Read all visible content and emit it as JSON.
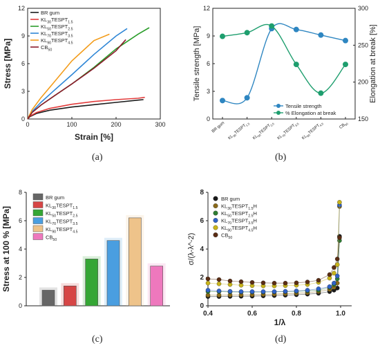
{
  "panel_labels": [
    "(a)",
    "(b)",
    "(c)",
    "(d)"
  ],
  "chart_data": [
    {
      "panel": "(a)",
      "type": "line",
      "xlabel": "Strain [%]",
      "ylabel": "Stress [MPa]",
      "xlim": [
        0,
        300
      ],
      "ylim": [
        0,
        12
      ],
      "xticks": [
        "0",
        "100",
        "200",
        "300"
      ],
      "yticks": [
        "0",
        "3",
        "6",
        "9",
        "12"
      ],
      "legend_position": "top-left",
      "series": [
        {
          "name": "BR gum",
          "label_parts": [
            "BR gum"
          ],
          "color": "#1a1a1a",
          "x": [
            0,
            5,
            20,
            50,
            100,
            150,
            200,
            250,
            262
          ],
          "y": [
            0,
            0.25,
            0.6,
            0.95,
            1.3,
            1.55,
            1.8,
            2.05,
            2.1
          ]
        },
        {
          "name": "KL30TESPT1.5",
          "label_parts": [
            "KL",
            "30",
            "TESPT",
            "1.5"
          ],
          "color": "#e23b3b",
          "x": [
            0,
            5,
            20,
            50,
            100,
            150,
            200,
            250,
            265
          ],
          "y": [
            0,
            0.3,
            0.7,
            1.15,
            1.6,
            1.9,
            2.1,
            2.25,
            2.35
          ]
        },
        {
          "name": "KL50TESPT2.5",
          "label_parts": [
            "KL",
            "50",
            "TESPT",
            "2.5"
          ],
          "color": "#2a9d2a",
          "x": [
            0,
            10,
            30,
            60,
            100,
            150,
            200,
            250,
            275
          ],
          "y": [
            0,
            0.7,
            1.5,
            2.5,
            3.8,
            5.6,
            7.6,
            9.2,
            9.9
          ]
        },
        {
          "name": "KL70TESPT3.5",
          "label_parts": [
            "KL",
            "70",
            "TESPT",
            "3.5"
          ],
          "color": "#2e86d6",
          "x": [
            0,
            10,
            30,
            60,
            100,
            150,
            200,
            225
          ],
          "y": [
            0,
            0.8,
            1.8,
            3.1,
            4.8,
            7.0,
            9.0,
            9.8
          ]
        },
        {
          "name": "KL90TESPT4.5",
          "label_parts": [
            "KL",
            "90",
            "TESPT",
            "4.5"
          ],
          "color": "#f39c1a",
          "x": [
            0,
            10,
            30,
            60,
            100,
            150,
            185
          ],
          "y": [
            0,
            1.0,
            2.3,
            4.0,
            6.3,
            8.5,
            9.2
          ]
        },
        {
          "name": "CB50",
          "label_parts": [
            "CB",
            "50"
          ],
          "color": "#8b1a2b",
          "x": [
            0,
            10,
            30,
            60,
            100,
            150,
            200,
            222
          ],
          "y": [
            0,
            0.7,
            1.5,
            2.5,
            3.8,
            5.5,
            7.4,
            8.6
          ]
        }
      ]
    },
    {
      "panel": "(b)",
      "type": "line",
      "categories": [
        "BR gum",
        "KL30TESPT1.5",
        "KL50TESPT2.5",
        "KL70TESPT3.5",
        "KL90TESPT4.5",
        "CB50"
      ],
      "category_parts": [
        [
          "BR gum"
        ],
        [
          "KL",
          "30",
          "TESPT",
          "1.5"
        ],
        [
          "KL",
          "50",
          "TESPT",
          "2.5"
        ],
        [
          "KL",
          "70",
          "TESPT",
          "3.5"
        ],
        [
          "KL",
          "90",
          "TESPT",
          "4.5"
        ],
        [
          "CB",
          "50"
        ]
      ],
      "ylabel": "Tensile strength [MPa]",
      "y2label": "Elongation at break [%]",
      "ylim": [
        0,
        12
      ],
      "y2lim": [
        150,
        300
      ],
      "yticks": [
        "0",
        "3",
        "6",
        "9",
        "12"
      ],
      "y2ticks": [
        "150",
        "200",
        "250",
        "300"
      ],
      "legend_position": "bottom-right",
      "series": [
        {
          "name": "Tensile strength",
          "axis": "left",
          "color": "#2e86c1",
          "values": [
            2.0,
            2.3,
            9.8,
            9.7,
            9.1,
            8.5
          ]
        },
        {
          "name": "% Elongation at break",
          "axis": "right",
          "color": "#1e9e6e",
          "values": [
            262,
            267,
            276,
            224,
            185,
            224
          ]
        }
      ]
    },
    {
      "panel": "(c)",
      "type": "bar",
      "ylabel": "Stress at 100 % [MPa]",
      "ylim": [
        0,
        8
      ],
      "yticks": [
        "0",
        "2",
        "4",
        "6",
        "8"
      ],
      "legend_position": "top-left",
      "categories": [
        "BR gum",
        "KL30TESPT1.5",
        "KL50TESPT2.5",
        "KL70TESPT3.5",
        "KL90TESPT4.5",
        "CB50"
      ],
      "category_parts": [
        [
          "BR gum"
        ],
        [
          "KL",
          "30",
          "TESPT",
          "1.5"
        ],
        [
          "KL",
          "50",
          "TESPT",
          "2.5"
        ],
        [
          "KL",
          "70",
          "TESPT",
          "3.5"
        ],
        [
          "KL",
          "90",
          "TESPT",
          "4.5"
        ],
        [
          "CB",
          "50"
        ]
      ],
      "colors": [
        "#666666",
        "#d64545",
        "#34a634",
        "#4a9ee0",
        "#eec38a",
        "#ee78bd"
      ],
      "values": [
        1.1,
        1.4,
        3.3,
        4.6,
        6.2,
        2.8
      ]
    },
    {
      "panel": "(d)",
      "type": "scatter",
      "xlabel": "1/λ",
      "ylabel": "σ/(λ-λ^-2)",
      "xlim": [
        0.4,
        1.05
      ],
      "ylim": [
        0,
        8
      ],
      "xticks": [
        "0.4",
        "0.6",
        "0.8",
        "1.0"
      ],
      "yticks": [
        "0",
        "2",
        "4",
        "6",
        "8"
      ],
      "legend_position": "top-left",
      "x": [
        0.4,
        0.45,
        0.5,
        0.55,
        0.6,
        0.65,
        0.7,
        0.75,
        0.8,
        0.85,
        0.9,
        0.95,
        0.97,
        0.985,
        0.995
      ],
      "series": [
        {
          "name": "BR gum",
          "label_parts": [
            "BR gum"
          ],
          "color": "#1a1a1a",
          "values": [
            0.65,
            0.65,
            0.66,
            0.67,
            0.68,
            0.7,
            0.72,
            0.75,
            0.78,
            0.82,
            0.88,
            1.0,
            1.1,
            1.25,
            4.9
          ]
        },
        {
          "name": "KL30TESPT1.5H",
          "label_parts": [
            "KL",
            "30",
            "TESPT",
            "1.5",
            "H"
          ],
          "color": "#8a6a1a",
          "values": [
            0.75,
            0.75,
            0.76,
            0.77,
            0.78,
            0.8,
            0.82,
            0.85,
            0.88,
            0.92,
            1.0,
            1.15,
            1.3,
            1.6,
            7.0
          ]
        },
        {
          "name": "KL50TESPT2.5H",
          "label_parts": [
            "KL",
            "50",
            "TESPT",
            "2.5",
            "H"
          ],
          "color": "#2e7d32",
          "values": [
            1.0,
            1.0,
            0.98,
            0.97,
            0.97,
            0.97,
            0.98,
            1.0,
            1.02,
            1.05,
            1.1,
            1.3,
            1.5,
            1.9,
            4.6
          ]
        },
        {
          "name": "KL70TESPT3.5H",
          "label_parts": [
            "KL",
            "70",
            "TESPT",
            "3.5",
            "H"
          ],
          "color": "#2f62c8",
          "values": [
            1.1,
            1.05,
            1.02,
            1.0,
            1.0,
            1.0,
            1.0,
            1.02,
            1.05,
            1.1,
            1.2,
            1.35,
            1.6,
            2.1,
            7.1
          ]
        },
        {
          "name": "KL90TESPT4.5H",
          "label_parts": [
            "KL",
            "90",
            "TESPT",
            "4.5",
            "H"
          ],
          "color": "#c8b41a",
          "values": [
            1.6,
            1.55,
            1.5,
            1.45,
            1.42,
            1.4,
            1.4,
            1.42,
            1.45,
            1.5,
            1.65,
            1.95,
            2.3,
            2.9,
            7.3
          ]
        },
        {
          "name": "CB50",
          "label_parts": [
            "CB",
            "50"
          ],
          "color": "#5a2d14",
          "values": [
            1.9,
            1.85,
            1.75,
            1.7,
            1.65,
            1.62,
            1.6,
            1.6,
            1.62,
            1.68,
            1.8,
            2.2,
            2.7,
            3.3,
            4.8
          ]
        }
      ]
    }
  ]
}
